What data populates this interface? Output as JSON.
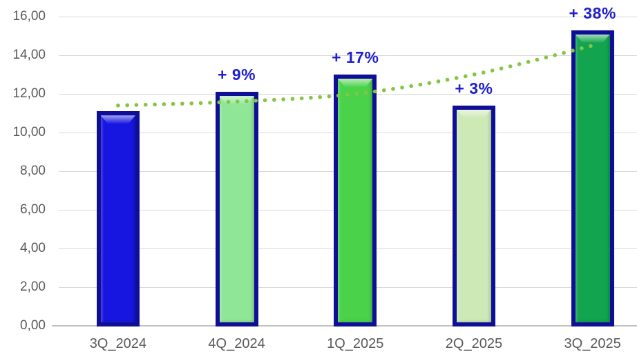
{
  "chart_data": {
    "type": "bar",
    "title": "",
    "categories": [
      "3Q_2024",
      "4Q_2024",
      "1Q_2025",
      "2Q_2025",
      "3Q_2025"
    ],
    "values": [
      11.1,
      12.1,
      13.0,
      11.4,
      15.3
    ],
    "bar_colors": [
      "#1616E0",
      "#90E697",
      "#4BD24B",
      "#CDE9B5",
      "#12A44E"
    ],
    "bar_border_color": "#0E0E96",
    "growth_labels": [
      "",
      "+ 9%",
      "+ 17%",
      "+ 3%",
      "+ 38%"
    ],
    "growth_label_color": "#1F1FCC",
    "ylim": [
      0,
      16
    ],
    "y_ticks": [
      {
        "value": 0,
        "label": "0,00"
      },
      {
        "value": 2,
        "label": "2,00"
      },
      {
        "value": 4,
        "label": "4,00"
      },
      {
        "value": 6,
        "label": "6,00"
      },
      {
        "value": 8,
        "label": "8,00"
      },
      {
        "value": 10,
        "label": "10,00"
      },
      {
        "value": 12,
        "label": "12,00"
      },
      {
        "value": 14,
        "label": "14,00"
      },
      {
        "value": 16,
        "label": "16,00"
      }
    ],
    "grid": true,
    "gridline_color": "#D9D9D9",
    "axis_line_color": "#BFBFBF",
    "axis_text_color": "#595959",
    "trendline": {
      "style": "dotted",
      "color": "#84C544",
      "values": [
        11.4,
        11.6,
        12.0,
        13.0,
        14.5
      ]
    }
  }
}
